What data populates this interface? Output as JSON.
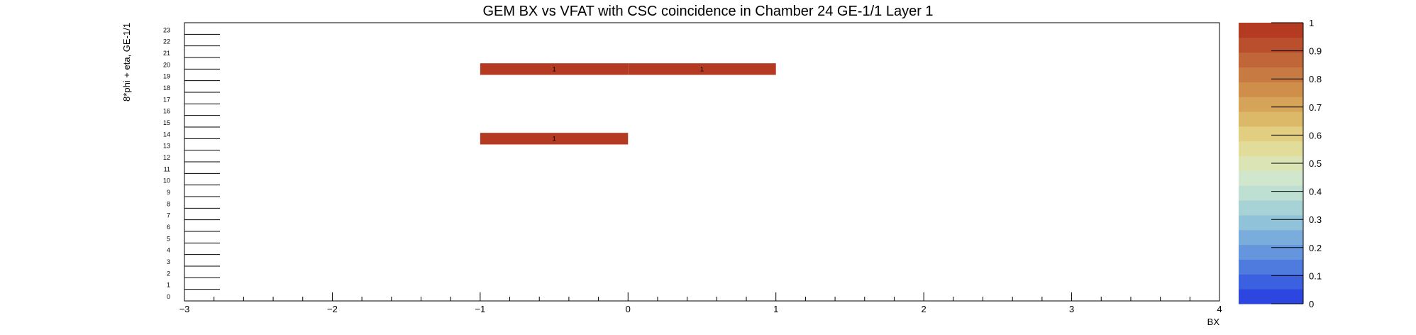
{
  "chart_data": {
    "type": "heatmap",
    "title": "GEM BX vs VFAT with CSC coincidence in Chamber 24 GE-1/1 Layer 1",
    "xlabel": "BX",
    "ylabel": "8*phi + eta, GE-1/1",
    "xlim": [
      -3,
      4
    ],
    "ylim": [
      0,
      24
    ],
    "x_ticks": [
      "−3",
      "−2",
      "−1",
      "0",
      "1",
      "2",
      "3",
      "4"
    ],
    "x_tick_values": [
      -3,
      -2,
      -1,
      0,
      1,
      2,
      3,
      4
    ],
    "y_tick_labels": [
      "0",
      "1",
      "2",
      "3",
      "4",
      "5",
      "6",
      "7",
      "8",
      "9",
      "10",
      "11",
      "12",
      "13",
      "14",
      "15",
      "16",
      "17",
      "18",
      "19",
      "20",
      "21",
      "22",
      "23"
    ],
    "grid": false,
    "bin_width": 1,
    "cells": [
      {
        "x": -1,
        "y": 20,
        "value": 1,
        "label": "1"
      },
      {
        "x": 0,
        "y": 20,
        "value": 1,
        "label": "1"
      },
      {
        "x": -1,
        "y": 14,
        "value": 1,
        "label": "1"
      }
    ],
    "colorbar": {
      "min": 0,
      "max": 1,
      "tick_values": [
        0,
        0.1,
        0.2,
        0.3,
        0.4,
        0.5,
        0.6,
        0.7,
        0.8,
        0.9,
        1
      ],
      "tick_labels": [
        "0",
        "0.1",
        "0.2",
        "0.3",
        "0.4",
        "0.5",
        "0.6",
        "0.7",
        "0.8",
        "0.9",
        "1"
      ],
      "colors": [
        "#2d46e0",
        "#3b60e0",
        "#4f7bde",
        "#6595dc",
        "#7aaddb",
        "#90c2d9",
        "#a7d2d6",
        "#bde0d3",
        "#d0e6cd",
        "#dbe4b5",
        "#e1dc9a",
        "#e2ce80",
        "#dcb968",
        "#d6a458",
        "#cf8f4b",
        "#c77a41",
        "#c06638",
        "#b94f2d",
        "#b43b22"
      ],
      "position": "right"
    }
  }
}
